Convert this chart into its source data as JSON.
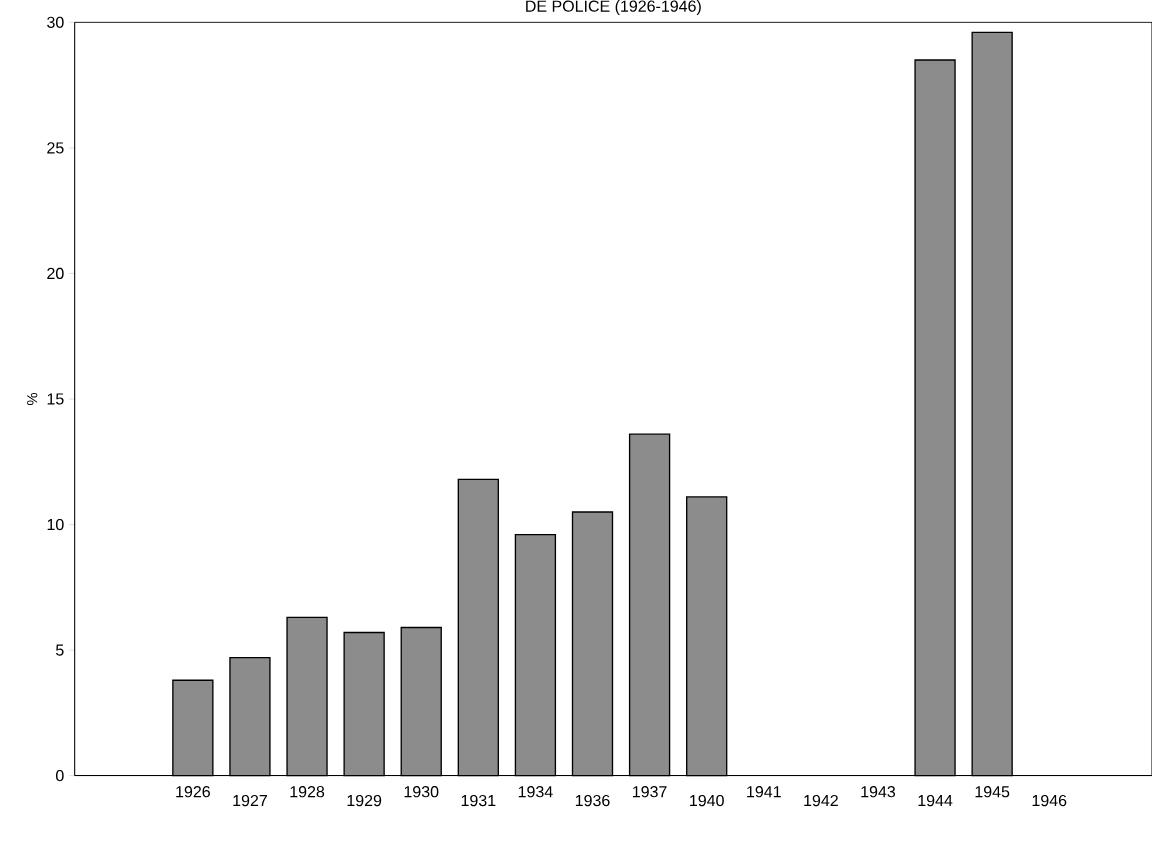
{
  "chart_data": {
    "type": "bar",
    "title": "DE POLICE (1926-1946)",
    "ylabel": "%",
    "categories": [
      "1926",
      "1927",
      "1928",
      "1929",
      "1930",
      "1931",
      "1934",
      "1936",
      "1937",
      "1940",
      "1941",
      "1942",
      "1943",
      "1944",
      "1945",
      "1946"
    ],
    "values": [
      3.8,
      4.7,
      6.3,
      5.7,
      5.9,
      11.8,
      9.6,
      10.5,
      13.6,
      11.1,
      null,
      null,
      null,
      28.5,
      29.6,
      null
    ],
    "color": "#8c8c8c",
    "ylim": [
      0,
      30
    ],
    "yticks": [
      0,
      5,
      10,
      15,
      20,
      25,
      30
    ],
    "grid": false
  }
}
